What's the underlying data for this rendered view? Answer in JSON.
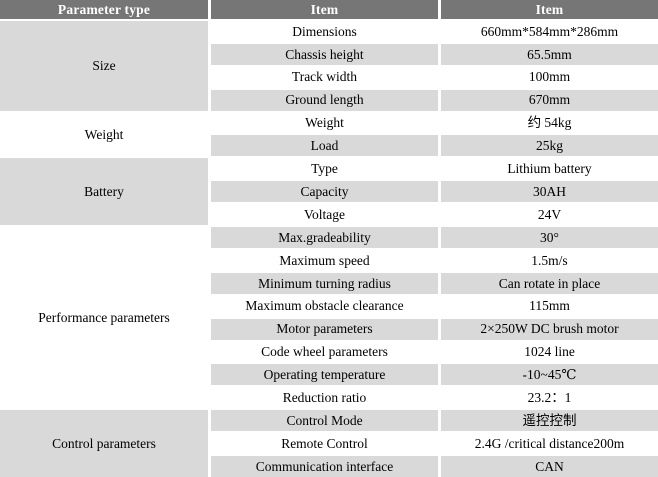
{
  "table": {
    "headers": [
      "Parameter type",
      "Item",
      "Item"
    ],
    "groups": [
      {
        "label": "Size",
        "rows": [
          [
            "Dimensions",
            "660mm*584mm*286mm"
          ],
          [
            "Chassis height",
            "65.5mm"
          ],
          [
            "Track width",
            "100mm"
          ],
          [
            "Ground length",
            "670mm"
          ]
        ]
      },
      {
        "label": "Weight",
        "rows": [
          [
            "Weight",
            "约 54kg"
          ],
          [
            "Load",
            "25kg"
          ]
        ]
      },
      {
        "label": "Battery",
        "rows": [
          [
            "Type",
            "Lithium battery"
          ],
          [
            "Capacity",
            "30AH"
          ],
          [
            "Voltage",
            "24V"
          ]
        ]
      },
      {
        "label": "Performance parameters",
        "rows": [
          [
            "Max.gradeability",
            "30°"
          ],
          [
            "Maximum speed",
            "1.5m/s"
          ],
          [
            "Minimum turning radius",
            "Can rotate in place"
          ],
          [
            "Maximum obstacle clearance",
            "115mm"
          ],
          [
            "Motor parameters",
            "2×250W DC brush motor"
          ],
          [
            "Code wheel parameters",
            "1024 line"
          ],
          [
            "Operating temperature",
            "-10~45℃"
          ],
          [
            "Reduction ratio",
            "23.2：1"
          ]
        ]
      },
      {
        "label": "Control parameters",
        "rows": [
          [
            "Control Mode",
            "遥控控制"
          ],
          [
            "Remote Control",
            "2.4G /critical distance200m"
          ],
          [
            "Communication interface",
            "CAN"
          ]
        ]
      }
    ],
    "colors": {
      "header_bg": "#767676",
      "header_text": "#ffffff",
      "row_alt_bg": "#d9d9d9",
      "row_bg": "#ffffff",
      "text": "#000000"
    }
  }
}
